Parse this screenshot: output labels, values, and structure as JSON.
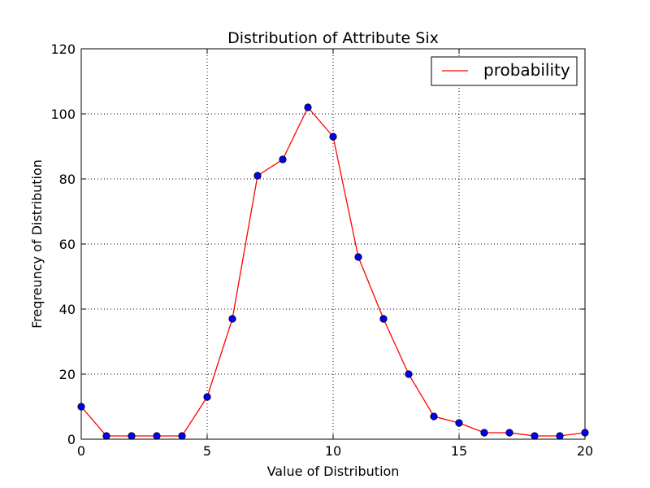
{
  "chart_data": {
    "type": "line",
    "title": "Distribution of Attribute Six",
    "xlabel": "Value of Distribution",
    "ylabel": "Freqreuncy of Distribution",
    "xlim": [
      0,
      20
    ],
    "ylim": [
      0,
      120
    ],
    "xticks": [
      0,
      5,
      10,
      15,
      20
    ],
    "yticks": [
      0,
      20,
      40,
      60,
      80,
      100,
      120
    ],
    "grid": true,
    "legend_position": "top-right",
    "series": [
      {
        "name": "probability",
        "color": "#ff0000",
        "marker_color": "#0000ff",
        "x": [
          0,
          1,
          2,
          3,
          4,
          5,
          6,
          7,
          8,
          9,
          10,
          11,
          12,
          13,
          14,
          15,
          16,
          17,
          18,
          19,
          20
        ],
        "y": [
          10,
          1,
          1,
          1,
          1,
          13,
          37,
          81,
          86,
          102,
          93,
          56,
          37,
          20,
          7,
          5,
          2,
          2,
          1,
          1,
          2
        ]
      }
    ]
  }
}
